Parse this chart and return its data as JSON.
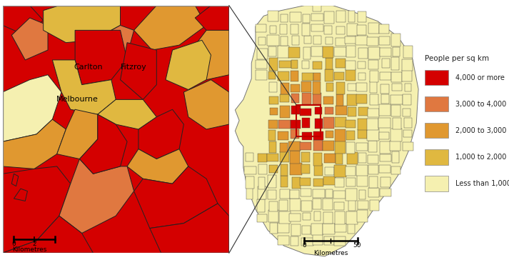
{
  "background_color": "#ffffff",
  "legend_title": "People per sq km",
  "legend_items": [
    {
      "label": "4,000 or more",
      "color": "#d40000"
    },
    {
      "label": "3,000 to 4,000",
      "color": "#e07840"
    },
    {
      "label": "2,000 to 3,000",
      "color": "#e09830"
    },
    {
      "label": "1,000 to 2,000",
      "color": "#e0b840"
    },
    {
      "label": "Less than 1,000",
      "color": "#f5f0b0"
    }
  ],
  "km_label": "Kilometres",
  "label_carlton": "Carlton",
  "label_fitzroy": "Fitzroy",
  "label_melbourne": "Melbourne",
  "connector_color": "#333333",
  "inset_box_color": "#bb0000"
}
